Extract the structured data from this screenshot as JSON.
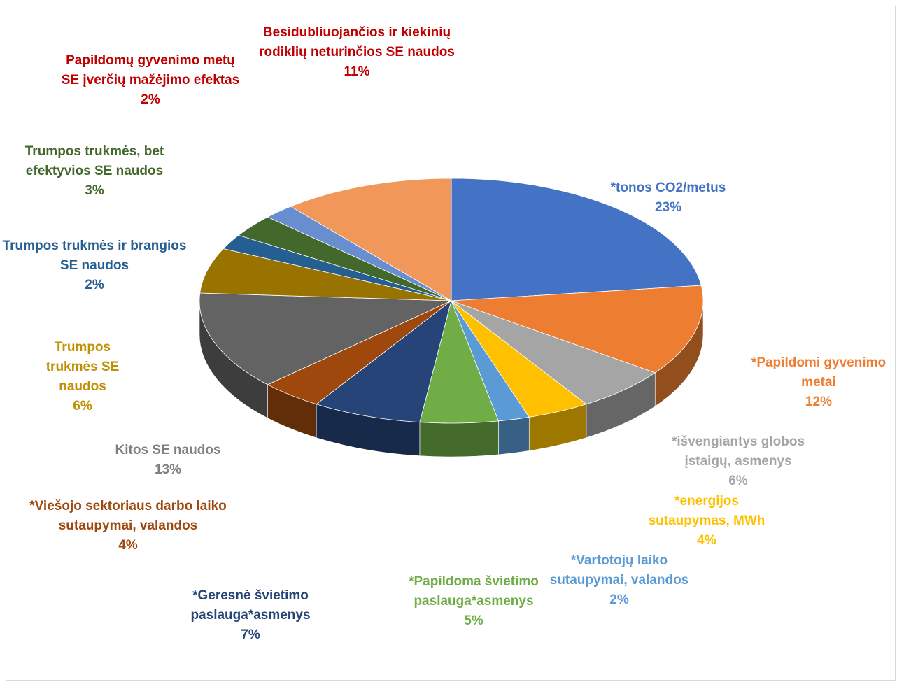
{
  "chart_data": {
    "type": "pie",
    "categories": [
      "*tonos CO2/metus",
      "*Papildomi gyvenimo metai",
      "*išvengiantys globos įstaigų, asmenys",
      "*energijos sutaupymas, MWh",
      "*Vartotojų laiko sutaupymai, valandos",
      "*Papildoma švietimo paslauga*asmenys",
      "*Geresnė švietimo paslauga*asmenys",
      "*Viešojo sektoriaus darbo laiko sutaupymai, valandos",
      "Kitos SE naudos",
      "Trumpos trukmės SE naudos",
      "Trumpos trukmės ir brangios SE naudos",
      "Trumpos trukmės, bet efektyvios SE naudos",
      "Papildomų gyvenimo metų SE įverčių mažėjimo efektas",
      "Besidubliuojančios ir kiekinių rodiklių neturinčios  SE naudos"
    ],
    "values": [
      23,
      12,
      6,
      4,
      2,
      5,
      7,
      4,
      13,
      6,
      2,
      3,
      2,
      11
    ],
    "value_labels": [
      "23%",
      "12%",
      "6%",
      "4%",
      "2%",
      "5%",
      "7%",
      "4%",
      "13%",
      "6%",
      "2%",
      "3%",
      "2%",
      "11%"
    ],
    "colors": [
      "#4472c4",
      "#ed7d31",
      "#a5a5a5",
      "#ffc000",
      "#5b9bd5",
      "#70ad47",
      "#264478",
      "#9e480e",
      "#636363",
      "#997300",
      "#255e91",
      "#43682b",
      "#698ed0",
      "#f1975a"
    ],
    "label_colors": [
      "#4472c4",
      "#ed7d31",
      "#a5a5a5",
      "#ffc000",
      "#5b9bd5",
      "#70ad47",
      "#264478",
      "#9e480e",
      "#7f7f7f",
      "#bf9000",
      "#255e91",
      "#43682b",
      "#c00000",
      "#c00000"
    ]
  }
}
